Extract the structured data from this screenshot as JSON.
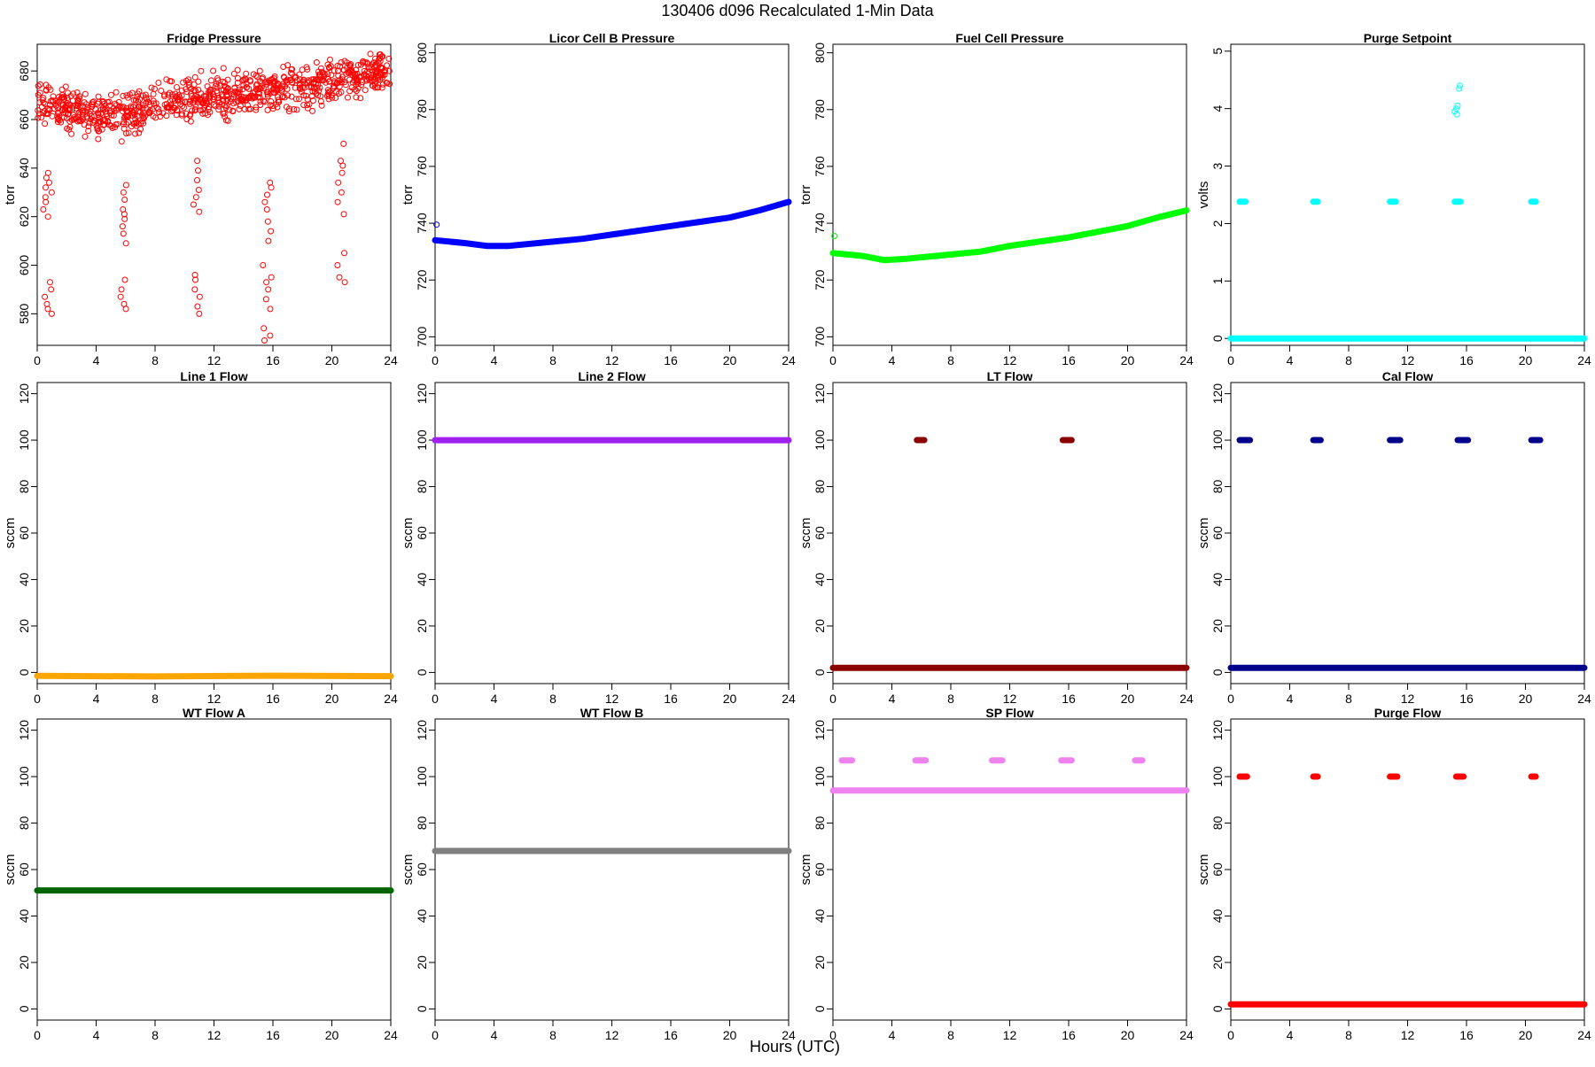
{
  "figure": {
    "title": "130406   d096   Recalculated 1-Min Data",
    "xlabel": "Hours (UTC)"
  },
  "chart_data": [
    {
      "type": "scatter",
      "title": "Fridge Pressure",
      "ylabel": "torr",
      "xlabel": "",
      "xlim": [
        0,
        24
      ],
      "xticks": [
        0,
        4,
        8,
        12,
        16,
        20,
        24
      ],
      "ylim": [
        567,
        691
      ],
      "yticks": [
        580,
        600,
        620,
        640,
        660,
        680
      ],
      "series": [
        {
          "color": "#ff0000",
          "marker": "open-circle",
          "baseline": [
            [
              0,
              668
            ],
            [
              2,
              664
            ],
            [
              4,
              661
            ],
            [
              5.5,
              662
            ],
            [
              6,
              660
            ],
            [
              8,
              667
            ],
            [
              10,
              668
            ],
            [
              11,
              669
            ],
            [
              12,
              670
            ],
            [
              15,
              671
            ],
            [
              16,
              673
            ],
            [
              18,
              673
            ],
            [
              20,
              675
            ],
            [
              21,
              678
            ],
            [
              24,
              679
            ]
          ],
          "spread": 6,
          "outlier_clusters": [
            {
              "x": 0.7,
              "y": [
                580,
                582,
                584,
                587,
                590,
                593,
                620,
                623,
                626,
                628,
                630,
                632,
                634,
                636,
                638
              ]
            },
            {
              "x": 5.8,
              "y": [
                582,
                584,
                587,
                590,
                594,
                609,
                613,
                616,
                619,
                621,
                623,
                627,
                630,
                633
              ]
            },
            {
              "x": 10.9,
              "y": [
                580,
                583,
                587,
                590,
                594,
                596,
                622,
                625,
                628,
                631,
                635,
                639,
                643
              ]
            },
            {
              "x": 15.6,
              "y": [
                569,
                571,
                574,
                582,
                586,
                590,
                593,
                595,
                600,
                610,
                614,
                618,
                623,
                626,
                629,
                632,
                634
              ]
            },
            {
              "x": 20.6,
              "y": [
                593,
                595,
                600,
                605,
                621,
                626,
                630,
                634,
                638,
                641,
                643,
                650
              ]
            }
          ]
        }
      ]
    },
    {
      "type": "scatter",
      "title": "Licor Cell B Pressure",
      "ylabel": "torr",
      "xlabel": "",
      "xlim": [
        0,
        24
      ],
      "xticks": [
        0,
        4,
        8,
        12,
        16,
        20,
        24
      ],
      "ylim": [
        697,
        803
      ],
      "yticks": [
        700,
        720,
        740,
        760,
        780,
        800
      ],
      "series": [
        {
          "color": "#0000ff",
          "marker": "open-circle",
          "line": [
            [
              0,
              734
            ],
            [
              2,
              733
            ],
            [
              3.5,
              732
            ],
            [
              5,
              732
            ],
            [
              8,
              733.5
            ],
            [
              10,
              734.5
            ],
            [
              12,
              736
            ],
            [
              14,
              737.5
            ],
            [
              16,
              739
            ],
            [
              18,
              740.5
            ],
            [
              20,
              742
            ],
            [
              22,
              744.5
            ],
            [
              24,
              747.5
            ]
          ],
          "points": [
            [
              0.1,
              739.5
            ]
          ]
        }
      ]
    },
    {
      "type": "scatter",
      "title": "Fuel Cell Pressure",
      "ylabel": "torr",
      "xlabel": "",
      "xlim": [
        0,
        24
      ],
      "xticks": [
        0,
        4,
        8,
        12,
        16,
        20,
        24
      ],
      "ylim": [
        697,
        803
      ],
      "yticks": [
        700,
        720,
        740,
        760,
        780,
        800
      ],
      "series": [
        {
          "color": "#00ff00",
          "marker": "open-circle",
          "line": [
            [
              0,
              729.5
            ],
            [
              2,
              728.5
            ],
            [
              3.5,
              727
            ],
            [
              5,
              727.5
            ],
            [
              8,
              729
            ],
            [
              10,
              730
            ],
            [
              12,
              732
            ],
            [
              14,
              733.5
            ],
            [
              16,
              735
            ],
            [
              18,
              737
            ],
            [
              20,
              739
            ],
            [
              22,
              742
            ],
            [
              24,
              744.5
            ]
          ],
          "points": [
            [
              0.1,
              735.5
            ]
          ]
        }
      ]
    },
    {
      "type": "scatter",
      "title": "Purge Setpoint",
      "ylabel": "volts",
      "xlabel": "",
      "xlim": [
        0,
        24
      ],
      "xticks": [
        0,
        4,
        8,
        12,
        16,
        20,
        24
      ],
      "ylim": [
        -0.12,
        5.12
      ],
      "yticks": [
        0,
        1,
        2,
        3,
        4,
        5
      ],
      "series": [
        {
          "color": "#00ffff",
          "marker": "open-circle",
          "line": [
            [
              0,
              0
            ],
            [
              24,
              0
            ]
          ],
          "segments": [
            [
              0.6,
              1.0,
              2.38
            ],
            [
              5.6,
              5.9,
              2.38
            ],
            [
              10.8,
              11.2,
              2.38
            ],
            [
              15.2,
              15.6,
              2.38
            ],
            [
              20.4,
              20.7,
              2.38
            ]
          ],
          "points": [
            [
              15.2,
              3.95
            ],
            [
              15.3,
              4.0
            ],
            [
              15.35,
              3.9
            ],
            [
              15.4,
              4.05
            ],
            [
              15.5,
              4.35
            ],
            [
              15.55,
              4.4
            ]
          ]
        }
      ]
    },
    {
      "type": "scatter",
      "title": "Line 1 Flow",
      "ylabel": "sccm",
      "xlabel": "",
      "xlim": [
        0,
        24
      ],
      "xticks": [
        0,
        4,
        8,
        12,
        16,
        20,
        24
      ],
      "ylim": [
        -4.8,
        124.8
      ],
      "yticks": [
        0,
        20,
        40,
        60,
        80,
        100,
        120
      ],
      "series": [
        {
          "color": "#ffa500",
          "marker": "open-circle",
          "line": [
            [
              0,
              -1.5
            ],
            [
              8,
              -1.7
            ],
            [
              16,
              -1.4
            ],
            [
              24,
              -1.6
            ]
          ]
        }
      ]
    },
    {
      "type": "scatter",
      "title": "Line 2 Flow",
      "ylabel": "sccm",
      "xlabel": "",
      "xlim": [
        0,
        24
      ],
      "xticks": [
        0,
        4,
        8,
        12,
        16,
        20,
        24
      ],
      "ylim": [
        -4.8,
        124.8
      ],
      "yticks": [
        0,
        20,
        40,
        60,
        80,
        100,
        120
      ],
      "series": [
        {
          "color": "#a020f0",
          "marker": "open-circle",
          "line": [
            [
              0,
              100
            ],
            [
              24,
              100
            ]
          ]
        }
      ]
    },
    {
      "type": "scatter",
      "title": "LT Flow",
      "ylabel": "sccm",
      "xlabel": "",
      "xlim": [
        0,
        24
      ],
      "xticks": [
        0,
        4,
        8,
        12,
        16,
        20,
        24
      ],
      "ylim": [
        -4.8,
        124.8
      ],
      "yticks": [
        0,
        20,
        40,
        60,
        80,
        100,
        120
      ],
      "series": [
        {
          "color": "#8b0000",
          "marker": "open-circle",
          "line": [
            [
              0,
              2
            ],
            [
              24,
              2
            ]
          ],
          "segments": [
            [
              5.7,
              6.2,
              100
            ],
            [
              15.6,
              16.2,
              100
            ]
          ]
        }
      ]
    },
    {
      "type": "scatter",
      "title": "Cal Flow",
      "ylabel": "sccm",
      "xlabel": "",
      "xlim": [
        0,
        24
      ],
      "xticks": [
        0,
        4,
        8,
        12,
        16,
        20,
        24
      ],
      "ylim": [
        -4.8,
        124.8
      ],
      "yticks": [
        0,
        20,
        40,
        60,
        80,
        100,
        120
      ],
      "series": [
        {
          "color": "#00008b",
          "marker": "open-circle",
          "line": [
            [
              0,
              2
            ],
            [
              24,
              2
            ]
          ],
          "segments": [
            [
              0.6,
              1.3,
              100
            ],
            [
              5.6,
              6.1,
              100
            ],
            [
              10.8,
              11.5,
              100
            ],
            [
              15.4,
              16.1,
              100
            ],
            [
              20.4,
              21.0,
              100
            ]
          ]
        }
      ]
    },
    {
      "type": "scatter",
      "title": "WT Flow A",
      "ylabel": "sccm",
      "xlabel": "",
      "xlim": [
        0,
        24
      ],
      "xticks": [
        0,
        4,
        8,
        12,
        16,
        20,
        24
      ],
      "ylim": [
        -4.8,
        124.8
      ],
      "yticks": [
        0,
        20,
        40,
        60,
        80,
        100,
        120
      ],
      "series": [
        {
          "color": "#006400",
          "marker": "open-circle",
          "line": [
            [
              0,
              51
            ],
            [
              24,
              51
            ]
          ]
        }
      ]
    },
    {
      "type": "scatter",
      "title": "WT Flow B",
      "ylabel": "sccm",
      "xlabel": "",
      "xlim": [
        0,
        24
      ],
      "xticks": [
        0,
        4,
        8,
        12,
        16,
        20,
        24
      ],
      "ylim": [
        -4.8,
        124.8
      ],
      "yticks": [
        0,
        20,
        40,
        60,
        80,
        100,
        120
      ],
      "series": [
        {
          "color": "#808080",
          "marker": "open-circle",
          "line": [
            [
              0,
              68
            ],
            [
              24,
              68
            ]
          ]
        }
      ]
    },
    {
      "type": "scatter",
      "title": "SP Flow",
      "ylabel": "sccm",
      "xlabel": "",
      "xlim": [
        0,
        24
      ],
      "xticks": [
        0,
        4,
        8,
        12,
        16,
        20,
        24
      ],
      "ylim": [
        -4.8,
        124.8
      ],
      "yticks": [
        0,
        20,
        40,
        60,
        80,
        100,
        120
      ],
      "series": [
        {
          "color": "#ee82ee",
          "marker": "open-circle",
          "line": [
            [
              0,
              94
            ],
            [
              24,
              94
            ]
          ],
          "segments": [
            [
              0.6,
              1.3,
              107
            ],
            [
              5.6,
              6.3,
              107
            ],
            [
              10.8,
              11.5,
              107
            ],
            [
              15.5,
              16.2,
              107
            ],
            [
              20.5,
              21.0,
              107
            ]
          ]
        }
      ]
    },
    {
      "type": "scatter",
      "title": "Purge Flow",
      "ylabel": "sccm",
      "xlabel": "",
      "xlim": [
        0,
        24
      ],
      "xticks": [
        0,
        4,
        8,
        12,
        16,
        20,
        24
      ],
      "ylim": [
        -4.8,
        124.8
      ],
      "yticks": [
        0,
        20,
        40,
        60,
        80,
        100,
        120
      ],
      "series": [
        {
          "color": "#ff0000",
          "marker": "open-circle",
          "line": [
            [
              0,
              2
            ],
            [
              24,
              2
            ]
          ],
          "segments": [
            [
              0.6,
              1.1,
              100
            ],
            [
              5.6,
              5.9,
              100
            ],
            [
              10.8,
              11.3,
              100
            ],
            [
              15.3,
              15.8,
              100
            ],
            [
              20.4,
              20.7,
              100
            ]
          ]
        }
      ]
    }
  ]
}
